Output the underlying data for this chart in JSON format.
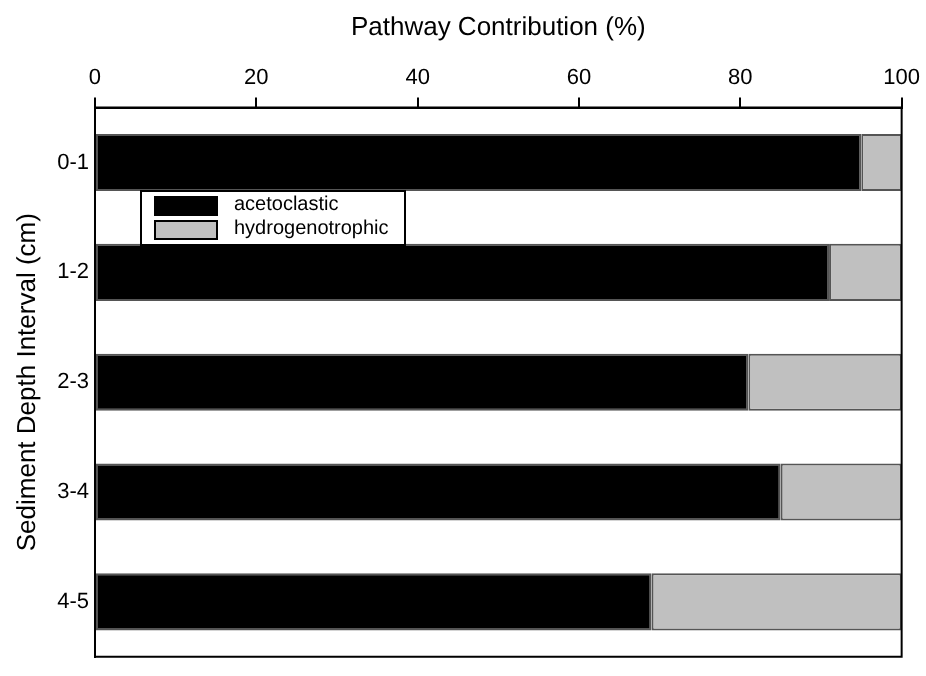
{
  "chart_data": {
    "type": "bar",
    "orientation": "horizontal",
    "stacked": true,
    "xlabel": "Pathway Contribution (%)",
    "ylabel": "Sediment Depth Interval (cm)",
    "categories": [
      "0-1",
      "1-2",
      "2-3",
      "3-4",
      "4-5"
    ],
    "series": [
      {
        "name": "acetoclastic",
        "color": "#000000",
        "values": [
          95,
          91,
          81,
          85,
          69
        ]
      },
      {
        "name": "hydrogenotrophic",
        "color": "#c0c0c0",
        "values": [
          5,
          9,
          19,
          15,
          31
        ]
      }
    ],
    "xlim": [
      0,
      100
    ],
    "xticks": [
      0,
      20,
      40,
      60,
      80,
      100
    ],
    "grid": false,
    "legend": "top left"
  }
}
